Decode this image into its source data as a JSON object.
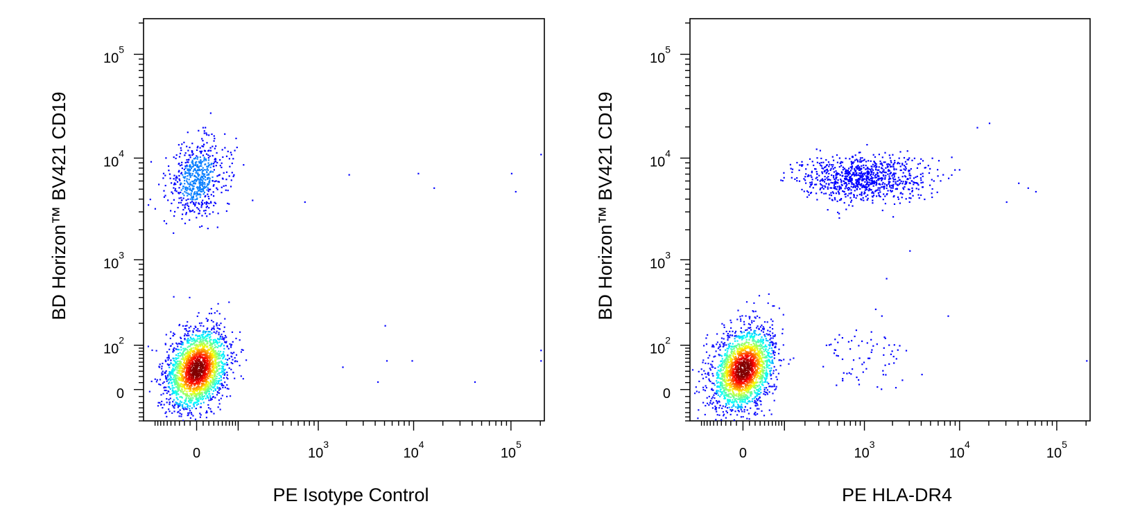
{
  "chart_data": [
    {
      "type": "scatter",
      "xlabel": "PE Isotype Control",
      "ylabel": "BD Horizon™ BV421  CD19",
      "x_scale": "biexponential",
      "y_scale": "biexponential",
      "x_tick_labels": [
        {
          "base": "0",
          "exp": "",
          "value": 0
        },
        {
          "base": "10",
          "exp": "3",
          "value": 1000
        },
        {
          "base": "10",
          "exp": "4",
          "value": 10000
        },
        {
          "base": "10",
          "exp": "5",
          "value": 100000
        }
      ],
      "y_tick_labels": [
        {
          "base": "0",
          "exp": "",
          "value": 0
        },
        {
          "base": "10",
          "exp": "2",
          "value": 100
        },
        {
          "base": "10",
          "exp": "3",
          "value": 1000
        },
        {
          "base": "10",
          "exp": "4",
          "value": 10000
        },
        {
          "base": "10",
          "exp": "5",
          "value": 100000
        }
      ],
      "xlim": [
        -150,
        220000
      ],
      "ylim": [
        -60,
        220000
      ],
      "populations": [
        {
          "name": "",
          "x_center": 0,
          "y_center": 35,
          "x_spread": 40,
          "y_spread": 30,
          "count": 2200,
          "density_colored": true
        },
        {
          "name": "",
          "x_center": 0,
          "y_center": 6500,
          "x_spread": 30,
          "y_spread": 0.22,
          "count": 600,
          "density_colored": false
        }
      ],
      "sparse_events": [
        [
          2100,
          7000
        ],
        [
          5000,
          190
        ],
        [
          1800,
          40
        ],
        [
          4200,
          12
        ],
        [
          9500,
          55
        ],
        [
          11000,
          7200
        ],
        [
          16000,
          5200
        ],
        [
          42000,
          12
        ],
        [
          100000,
          7200
        ],
        [
          110000,
          4800
        ],
        [
          200000,
          11000
        ],
        [
          200000,
          85
        ],
        [
          200000,
          55
        ],
        [
          5200,
          55
        ],
        [
          700,
          3800
        ]
      ]
    },
    {
      "type": "scatter",
      "xlabel": "PE HLA-DR4",
      "ylabel": "BD Horizon™ BV421  CD19",
      "x_scale": "biexponential",
      "y_scale": "biexponential",
      "x_tick_labels": [
        {
          "base": "0",
          "exp": "",
          "value": 0
        },
        {
          "base": "10",
          "exp": "3",
          "value": 1000
        },
        {
          "base": "10",
          "exp": "4",
          "value": 10000
        },
        {
          "base": "10",
          "exp": "5",
          "value": 100000
        }
      ],
      "y_tick_labels": [
        {
          "base": "0",
          "exp": "",
          "value": 0
        },
        {
          "base": "10",
          "exp": "2",
          "value": 100
        },
        {
          "base": "10",
          "exp": "3",
          "value": 1000
        },
        {
          "base": "10",
          "exp": "4",
          "value": 10000
        },
        {
          "base": "10",
          "exp": "5",
          "value": 100000
        }
      ],
      "xlim": [
        -150,
        220000
      ],
      "ylim": [
        -60,
        220000
      ],
      "populations": [
        {
          "name": "",
          "x_center": 0,
          "y_center": 35,
          "x_spread": 40,
          "y_spread": 30,
          "count": 2200,
          "density_colored": true
        },
        {
          "name": "",
          "x_center": 900,
          "y_center": 6500,
          "x_spread": 1.0,
          "y_spread": 0.2,
          "count": 900,
          "density_colored": false
        },
        {
          "name": "",
          "x_center": 1100,
          "y_center": 60,
          "x_spread": 0.7,
          "y_spread": 25,
          "count": 70,
          "density_colored": false
        }
      ],
      "sparse_events": [
        [
          40000,
          5800
        ],
        [
          50000,
          5200
        ],
        [
          60000,
          4800
        ],
        [
          30000,
          3800
        ],
        [
          20000,
          22000
        ],
        [
          15000,
          20000
        ],
        [
          7500,
          250
        ],
        [
          3000,
          1250
        ],
        [
          1700,
          650
        ],
        [
          1300,
          300
        ],
        [
          200000,
          55
        ],
        [
          4000,
          25
        ],
        [
          2500,
          15
        ]
      ]
    }
  ]
}
